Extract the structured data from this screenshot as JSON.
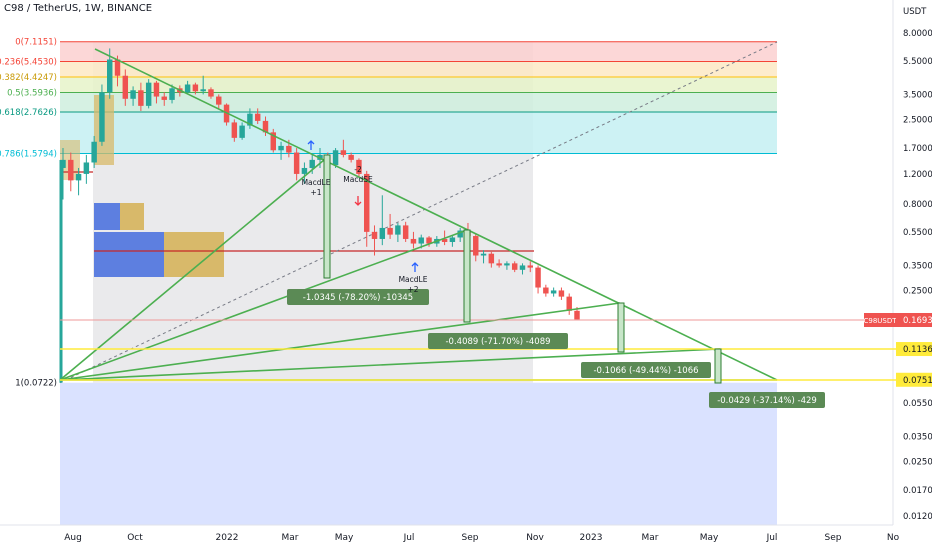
{
  "header": {
    "title": "C98 / TetherUS, 1W, BINANCE"
  },
  "colors": {
    "up": "#26a69a",
    "down": "#ef5350",
    "trend": "#4caf50",
    "fib_red": "#f44336",
    "fib_yellow": "#ffc107",
    "fib_green": "#4caf50",
    "fib_teal": "#089981",
    "fib_cyan": "#00bcd4",
    "price_label_bg": "#ef5350",
    "yellow_line": "#ffeb3b",
    "blue_zone": "#d1dbff",
    "grey_zone": "#e8e8ea",
    "vp_blue": "#5d7fe0",
    "vp_gold": "#d8b96a"
  },
  "chart_data": {
    "type": "candlestick",
    "title": "C98 / TetherUS, 1W, BINANCE",
    "y_axis": {
      "label": "USDT",
      "scale": "log",
      "ticks": [
        "8.0000",
        "5.5000",
        "3.5000",
        "2.5000",
        "1.7000",
        "1.2000",
        "0.8000",
        "0.5500",
        "0.3500",
        "0.2500",
        "0.1700",
        "0.1136",
        "0.0751",
        "0.0550",
        "0.0350",
        "0.0250",
        "0.0170",
        "0.0120"
      ]
    },
    "x_axis": {
      "ticks": [
        "Aug",
        "Oct",
        "2022",
        "Mar",
        "May",
        "Jul",
        "Sep",
        "Nov",
        "2023",
        "Mar",
        "May",
        "Jul",
        "Sep",
        "No"
      ]
    },
    "fib_levels": [
      {
        "label": "0(7.1151)",
        "value": 7.1151
      },
      {
        "label": "0.236(5.4530)",
        "value": 5.453
      },
      {
        "label": "0.382(4.4247)",
        "value": 4.4247
      },
      {
        "label": "0.5(3.5936)",
        "value": 3.5936
      },
      {
        "label": "0.618(2.7626)",
        "value": 2.7626
      },
      {
        "label": "0.786(1.5794)",
        "value": 1.5794
      },
      {
        "label": "1(0.0722)",
        "value": 0.0722
      }
    ],
    "current_price": {
      "symbol": "C98USDT",
      "value": "0.1693"
    },
    "price_markers": [
      "0.1136",
      "0.0751"
    ],
    "signals": [
      {
        "text": "MacdLE\n+1"
      },
      {
        "text": "-2\nMacdSE"
      },
      {
        "text": "MacdLE\n+2"
      }
    ],
    "measure_labels": [
      "-1.0345 (-78.20%) -10345",
      "-0.4089 (-71.70%) -4089",
      "-0.1066 (-49.44%) -1066",
      "-0.0429 (-37.14%) -429"
    ],
    "candles": [
      [
        1.3,
        1.7,
        0.85,
        1.45
      ],
      [
        1.45,
        1.6,
        0.95,
        1.1
      ],
      [
        1.1,
        1.3,
        0.9,
        1.2
      ],
      [
        1.2,
        1.55,
        1.05,
        1.4
      ],
      [
        1.4,
        2.0,
        1.3,
        1.85
      ],
      [
        1.85,
        4.0,
        1.75,
        3.6
      ],
      [
        3.6,
        6.5,
        3.3,
        5.6
      ],
      [
        5.6,
        5.9,
        3.9,
        4.5
      ],
      [
        4.5,
        4.9,
        3.0,
        3.3
      ],
      [
        3.3,
        3.9,
        3.0,
        3.7
      ],
      [
        3.7,
        4.1,
        2.8,
        3.0
      ],
      [
        3.0,
        4.3,
        2.9,
        4.1
      ],
      [
        4.1,
        4.2,
        3.1,
        3.4
      ],
      [
        3.4,
        3.6,
        3.0,
        3.25
      ],
      [
        3.25,
        4.0,
        3.1,
        3.8
      ],
      [
        3.8,
        3.95,
        3.4,
        3.6
      ],
      [
        3.6,
        4.2,
        3.5,
        4.0
      ],
      [
        4.0,
        4.1,
        3.5,
        3.65
      ],
      [
        3.65,
        4.5,
        3.5,
        3.75
      ],
      [
        3.75,
        3.85,
        3.3,
        3.4
      ],
      [
        3.4,
        3.5,
        2.9,
        3.05
      ],
      [
        3.05,
        3.1,
        2.3,
        2.4
      ],
      [
        2.4,
        2.5,
        1.85,
        1.95
      ],
      [
        1.95,
        2.4,
        1.9,
        2.3
      ],
      [
        2.3,
        2.9,
        2.2,
        2.7
      ],
      [
        2.7,
        2.9,
        2.35,
        2.45
      ],
      [
        2.45,
        2.6,
        2.0,
        2.1
      ],
      [
        2.1,
        2.2,
        1.6,
        1.65
      ],
      [
        1.65,
        1.85,
        1.45,
        1.75
      ],
      [
        1.75,
        1.9,
        1.5,
        1.6
      ],
      [
        1.6,
        1.7,
        1.1,
        1.2
      ],
      [
        1.2,
        1.4,
        1.05,
        1.3
      ],
      [
        1.3,
        1.55,
        1.2,
        1.45
      ],
      [
        1.45,
        1.7,
        1.3,
        1.55
      ],
      [
        1.55,
        1.6,
        1.3,
        1.35
      ],
      [
        1.35,
        1.7,
        1.3,
        1.65
      ],
      [
        1.65,
        1.9,
        1.5,
        1.55
      ],
      [
        1.55,
        1.6,
        1.4,
        1.45
      ],
      [
        1.45,
        1.48,
        1.15,
        1.2
      ],
      [
        1.2,
        1.25,
        0.45,
        0.55
      ],
      [
        0.55,
        0.6,
        0.4,
        0.5
      ],
      [
        0.5,
        0.9,
        0.46,
        0.58
      ],
      [
        0.58,
        0.7,
        0.5,
        0.53
      ],
      [
        0.53,
        0.62,
        0.48,
        0.6
      ],
      [
        0.6,
        0.63,
        0.48,
        0.5
      ],
      [
        0.5,
        0.55,
        0.44,
        0.47
      ],
      [
        0.47,
        0.53,
        0.44,
        0.51
      ],
      [
        0.51,
        0.52,
        0.45,
        0.47
      ],
      [
        0.47,
        0.52,
        0.45,
        0.5
      ],
      [
        0.5,
        0.56,
        0.46,
        0.48
      ],
      [
        0.48,
        0.52,
        0.45,
        0.51
      ],
      [
        0.51,
        0.58,
        0.48,
        0.56
      ],
      [
        0.56,
        0.62,
        0.5,
        0.52
      ],
      [
        0.52,
        0.54,
        0.37,
        0.4
      ],
      [
        0.4,
        0.43,
        0.36,
        0.41
      ],
      [
        0.41,
        0.42,
        0.34,
        0.36
      ],
      [
        0.36,
        0.38,
        0.34,
        0.35
      ],
      [
        0.35,
        0.37,
        0.33,
        0.36
      ],
      [
        0.36,
        0.37,
        0.32,
        0.33
      ],
      [
        0.33,
        0.36,
        0.31,
        0.35
      ],
      [
        0.35,
        0.37,
        0.32,
        0.34
      ],
      [
        0.34,
        0.35,
        0.24,
        0.26
      ],
      [
        0.26,
        0.27,
        0.23,
        0.24
      ],
      [
        0.24,
        0.26,
        0.23,
        0.25
      ],
      [
        0.25,
        0.26,
        0.22,
        0.23
      ],
      [
        0.23,
        0.24,
        0.18,
        0.19
      ],
      [
        0.19,
        0.2,
        0.17,
        0.1693
      ]
    ]
  }
}
